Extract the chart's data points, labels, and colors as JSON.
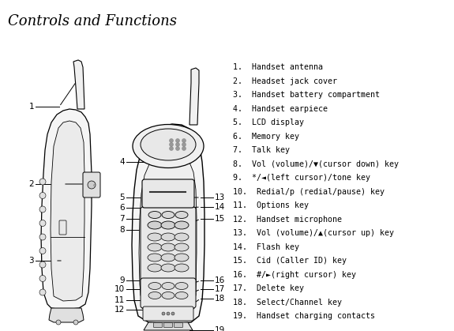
{
  "title": "Controls and Functions",
  "background_color": "#ffffff",
  "items": [
    "1.  Handset antenna",
    "2.  Headset jack cover",
    "3.  Handset battery compartment",
    "4.  Handset earpiece",
    "5.  LCD display",
    "6.  Memory key",
    "7.  Talk key",
    "8.  Vol (volume)/▼(cursor down) key",
    "9.  */◄(left cursor)/tone key",
    "10.  Redial/p (redial/pause) key",
    "11.  Options key",
    "12.  Handset microphone",
    "13.  Vol (volume)/▲(cursor up) key",
    "14.  Flash key",
    "15.  Cid (Caller ID) key",
    "16.  #/►(right cursor) key",
    "17.  Delete key",
    "18.  Select/Channel key",
    "19.  Handset charging contacts"
  ]
}
